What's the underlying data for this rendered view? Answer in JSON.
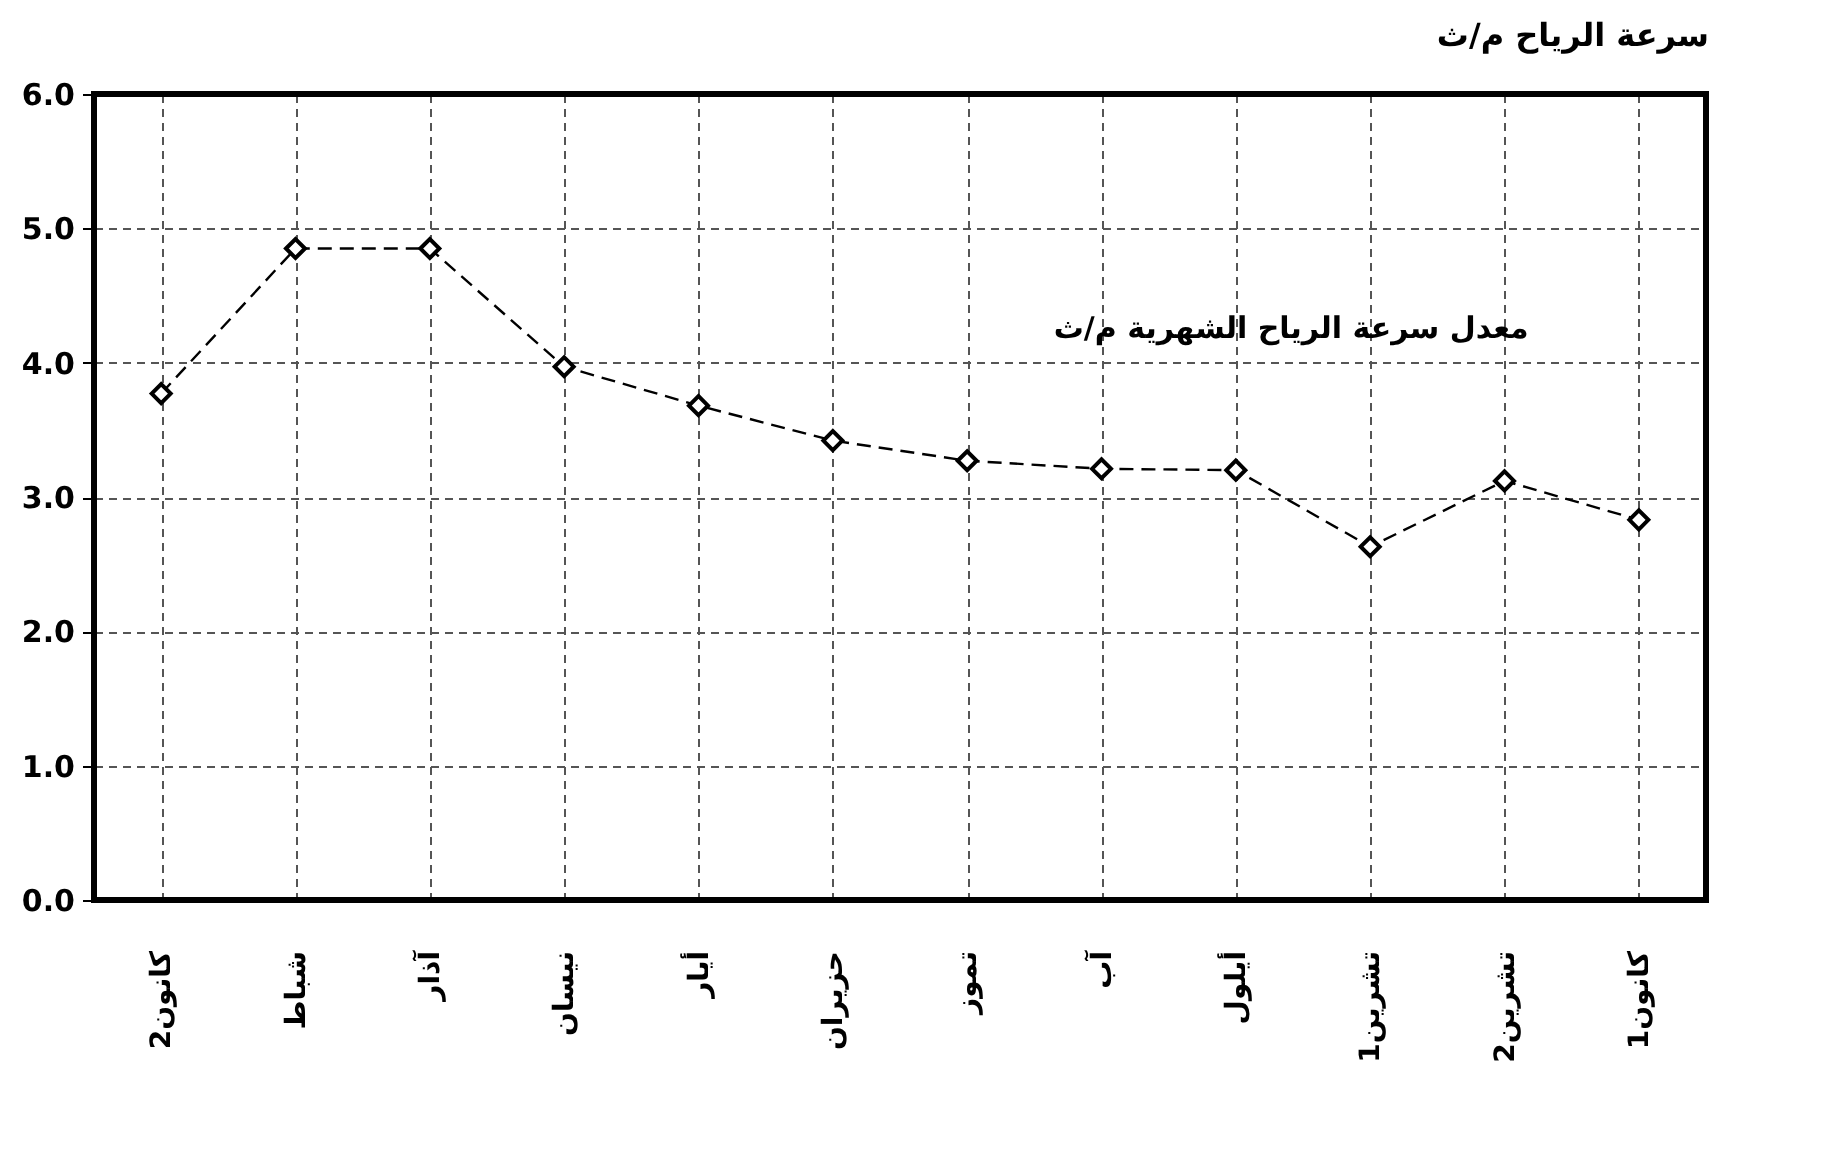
{
  "chart_data": {
    "type": "line",
    "title": "سرعة الرياح م/ث",
    "categories": [
      "كانون2",
      "شباط",
      "آذار",
      "نيسان",
      "أيار",
      "حزيران",
      "تموز",
      "آب",
      "أيلول",
      "تشرين1",
      "تشرين2",
      "كانون1"
    ],
    "series": [
      {
        "name": "معدل سرعة الرياح الشهرية م/ث",
        "color": "#000000",
        "values": [
          3.77,
          4.85,
          4.85,
          3.97,
          3.68,
          3.42,
          3.27,
          3.21,
          3.2,
          2.63,
          3.12,
          2.83
        ]
      }
    ],
    "ylim": [
      0,
      6
    ],
    "yticks": [
      {
        "value": 0,
        "label": "0.0"
      },
      {
        "value": 1,
        "label": "1.0"
      },
      {
        "value": 2,
        "label": "2.0"
      },
      {
        "value": 3,
        "label": "3.0"
      },
      {
        "value": 4,
        "label": "4.0"
      },
      {
        "value": 5,
        "label": "5.0"
      },
      {
        "value": 6,
        "label": "6.0"
      }
    ],
    "grid": true,
    "marker": "diamond",
    "line_style": "dashed"
  }
}
